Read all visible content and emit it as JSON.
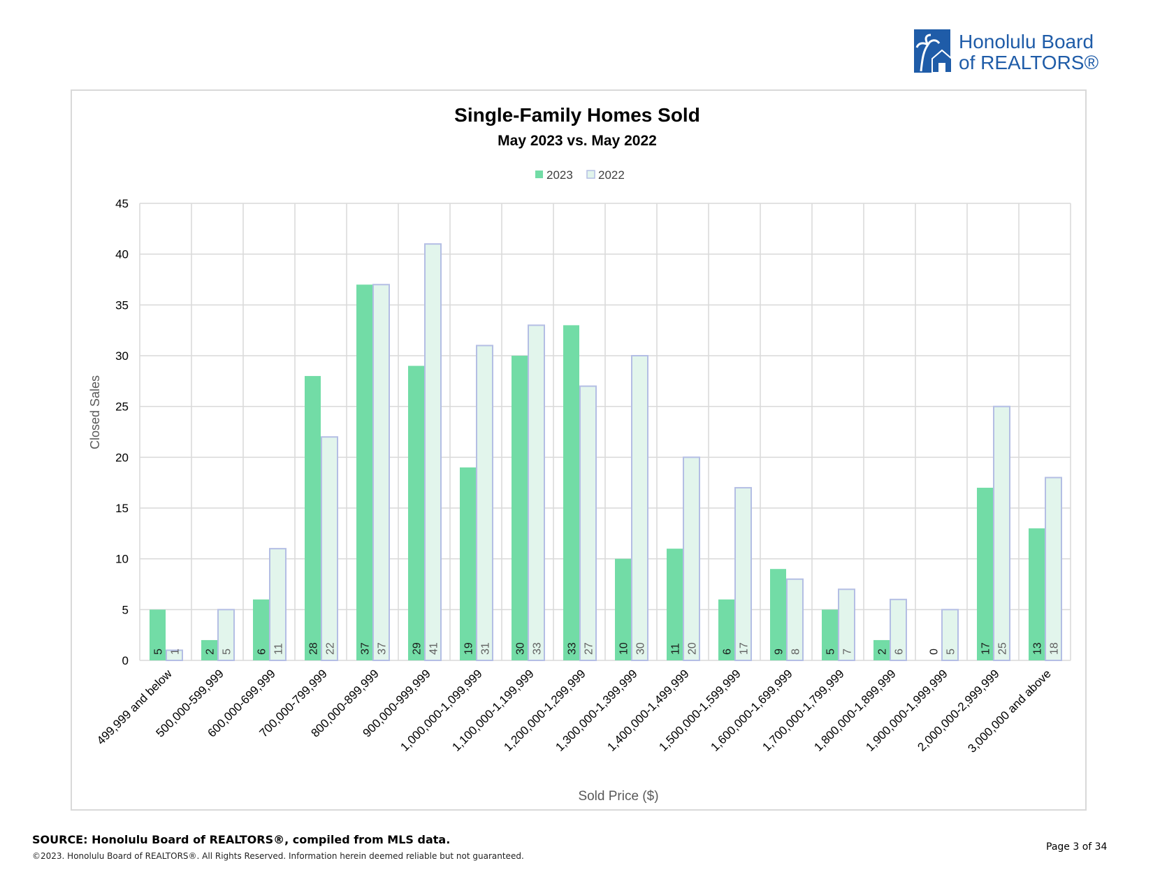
{
  "logo": {
    "line1": "Honolulu Board",
    "line2": "of REALTORS®"
  },
  "colors": {
    "series2023": "#72dca6",
    "series2022_fill": "#e2f5ec",
    "series2022_stroke": "#b4bee4",
    "grid": "#d9d9d9",
    "brand": "#1f5ca8"
  },
  "chart_data": {
    "type": "bar",
    "title": "Single-Family Homes Sold",
    "subtitle": "May 2023 vs. May 2022",
    "xlabel": "Sold Price ($)",
    "ylabel": "Closed Sales",
    "ylim": [
      0,
      45
    ],
    "yticks": [
      0,
      5,
      10,
      15,
      20,
      25,
      30,
      35,
      40,
      45
    ],
    "grid": true,
    "legend_position": "top-center",
    "categories": [
      "499,999 and below",
      "500,000-599,999",
      "600,000-699,999",
      "700,000-799,999",
      "800,000-899,999",
      "900,000-999,999",
      "1,000,000-1,099,999",
      "1,100,000-1,199,999",
      "1,200,000-1,299,999",
      "1,300,000-1,399,999",
      "1,400,000-1,499,999",
      "1,500,000-1,599,999",
      "1,600,000-1,699,999",
      "1,700,000-1,799,999",
      "1,800,000-1,899,999",
      "1,900,000-1,999,999",
      "2,000,000-2,999,999",
      "3,000,000 and above"
    ],
    "series": [
      {
        "name": "2023",
        "values": [
          5,
          2,
          6,
          28,
          37,
          29,
          19,
          30,
          33,
          10,
          11,
          6,
          9,
          5,
          2,
          0,
          17,
          13
        ]
      },
      {
        "name": "2022",
        "values": [
          1,
          5,
          11,
          22,
          37,
          41,
          31,
          33,
          27,
          30,
          20,
          17,
          8,
          7,
          6,
          5,
          25,
          18
        ]
      }
    ]
  },
  "footer": {
    "source": "SOURCE: Honolulu Board of REALTORS®, compiled from MLS data.",
    "copyright": "©2023. Honolulu Board of REALTORS®. All Rights Reserved. Information herein deemed reliable but not guaranteed.",
    "page": "Page 3 of 34"
  }
}
